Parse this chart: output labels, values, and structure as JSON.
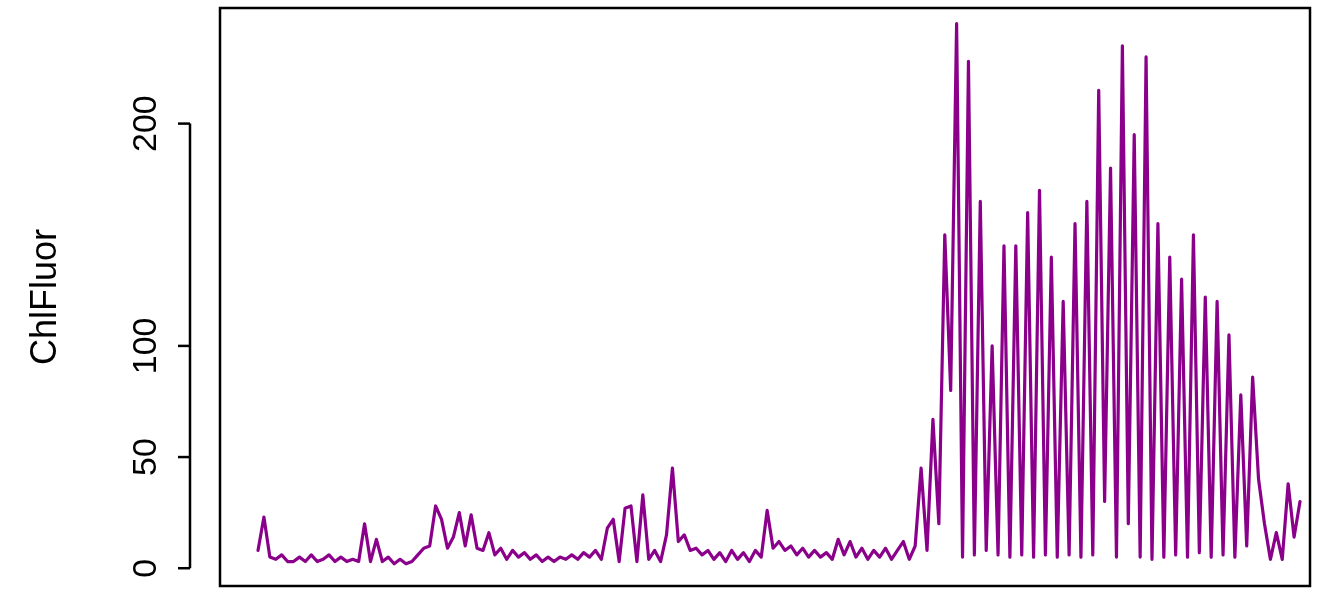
{
  "chart_data": {
    "type": "line",
    "ylabel": "ChlFluor",
    "categories": [
      null,
      null,
      null,
      null,
      null,
      null,
      null,
      null,
      null,
      null,
      null,
      null,
      null,
      null,
      null,
      null,
      null,
      null,
      null,
      null,
      null,
      null,
      null,
      null,
      null,
      null,
      null,
      null,
      null,
      null,
      null,
      null,
      null,
      null,
      null,
      null,
      null,
      null,
      null,
      null,
      null,
      null,
      null,
      null,
      null,
      null,
      null,
      null,
      null,
      null,
      null,
      null,
      null,
      null,
      null,
      null,
      null,
      null,
      null,
      null,
      null,
      null,
      null,
      null,
      null,
      null,
      null,
      null,
      null,
      null,
      null,
      null,
      null,
      null,
      null,
      null,
      null,
      null,
      null,
      null,
      null,
      null,
      null,
      null,
      null,
      null,
      null,
      null,
      null,
      null,
      null,
      null,
      null,
      null,
      null,
      null,
      null,
      null,
      null,
      null,
      null,
      null,
      null,
      null,
      null,
      null,
      null,
      null,
      null,
      null,
      null,
      null,
      null,
      null,
      null,
      null,
      null,
      null,
      null,
      null,
      null,
      null,
      null,
      null,
      null,
      null,
      null,
      null,
      null,
      null,
      null,
      null,
      null,
      null,
      null,
      null,
      null,
      null,
      null,
      null,
      null,
      null,
      null,
      null,
      null,
      null,
      null,
      null,
      null,
      null,
      null,
      null,
      null,
      null,
      null,
      null,
      null,
      null,
      null,
      null,
      null,
      null,
      null,
      null,
      null,
      null,
      null,
      null,
      null,
      null,
      null,
      null,
      null,
      null,
      null,
      null,
      null
    ],
    "series": [
      {
        "color": "#8b008b",
        "values": [
          8,
          23,
          5,
          4,
          6,
          3,
          3,
          5,
          3,
          6,
          3,
          4,
          6,
          3,
          5,
          3,
          4,
          3,
          20,
          3,
          13,
          3,
          5,
          2,
          4,
          2,
          3,
          6,
          9,
          10,
          28,
          22,
          9,
          14,
          25,
          10,
          24,
          9,
          8,
          16,
          6,
          9,
          4,
          8,
          5,
          7,
          4,
          6,
          3,
          5,
          3,
          5,
          4,
          6,
          4,
          7,
          5,
          8,
          4,
          18,
          22,
          3,
          27,
          28,
          3,
          33,
          4,
          8,
          3,
          15,
          45,
          12,
          15,
          8,
          9,
          6,
          8,
          4,
          7,
          3,
          8,
          4,
          7,
          3,
          8,
          5,
          26,
          9,
          12,
          8,
          10,
          6,
          9,
          5,
          8,
          5,
          7,
          4,
          13,
          6,
          12,
          5,
          9,
          4,
          8,
          5,
          9,
          4,
          8,
          12,
          4,
          10,
          45,
          8,
          67,
          20,
          150,
          80,
          245,
          5,
          228,
          6,
          165,
          8,
          100,
          6,
          145,
          5,
          145,
          6,
          160,
          5,
          170,
          6,
          140,
          5,
          120,
          6,
          155,
          5,
          165,
          6,
          215,
          30,
          180,
          5,
          235,
          20,
          195,
          5,
          230,
          4,
          155,
          5,
          140,
          6,
          130,
          5,
          150,
          7,
          122,
          5,
          120,
          6,
          105,
          5,
          78,
          10,
          86,
          40,
          20,
          4,
          16,
          4,
          38,
          14,
          30
        ]
      }
    ],
    "ylim": [
      -8,
      252
    ],
    "yticks": [
      0,
      50,
      100,
      200
    ],
    "tick_labels": "y",
    "line_style": "solid"
  }
}
